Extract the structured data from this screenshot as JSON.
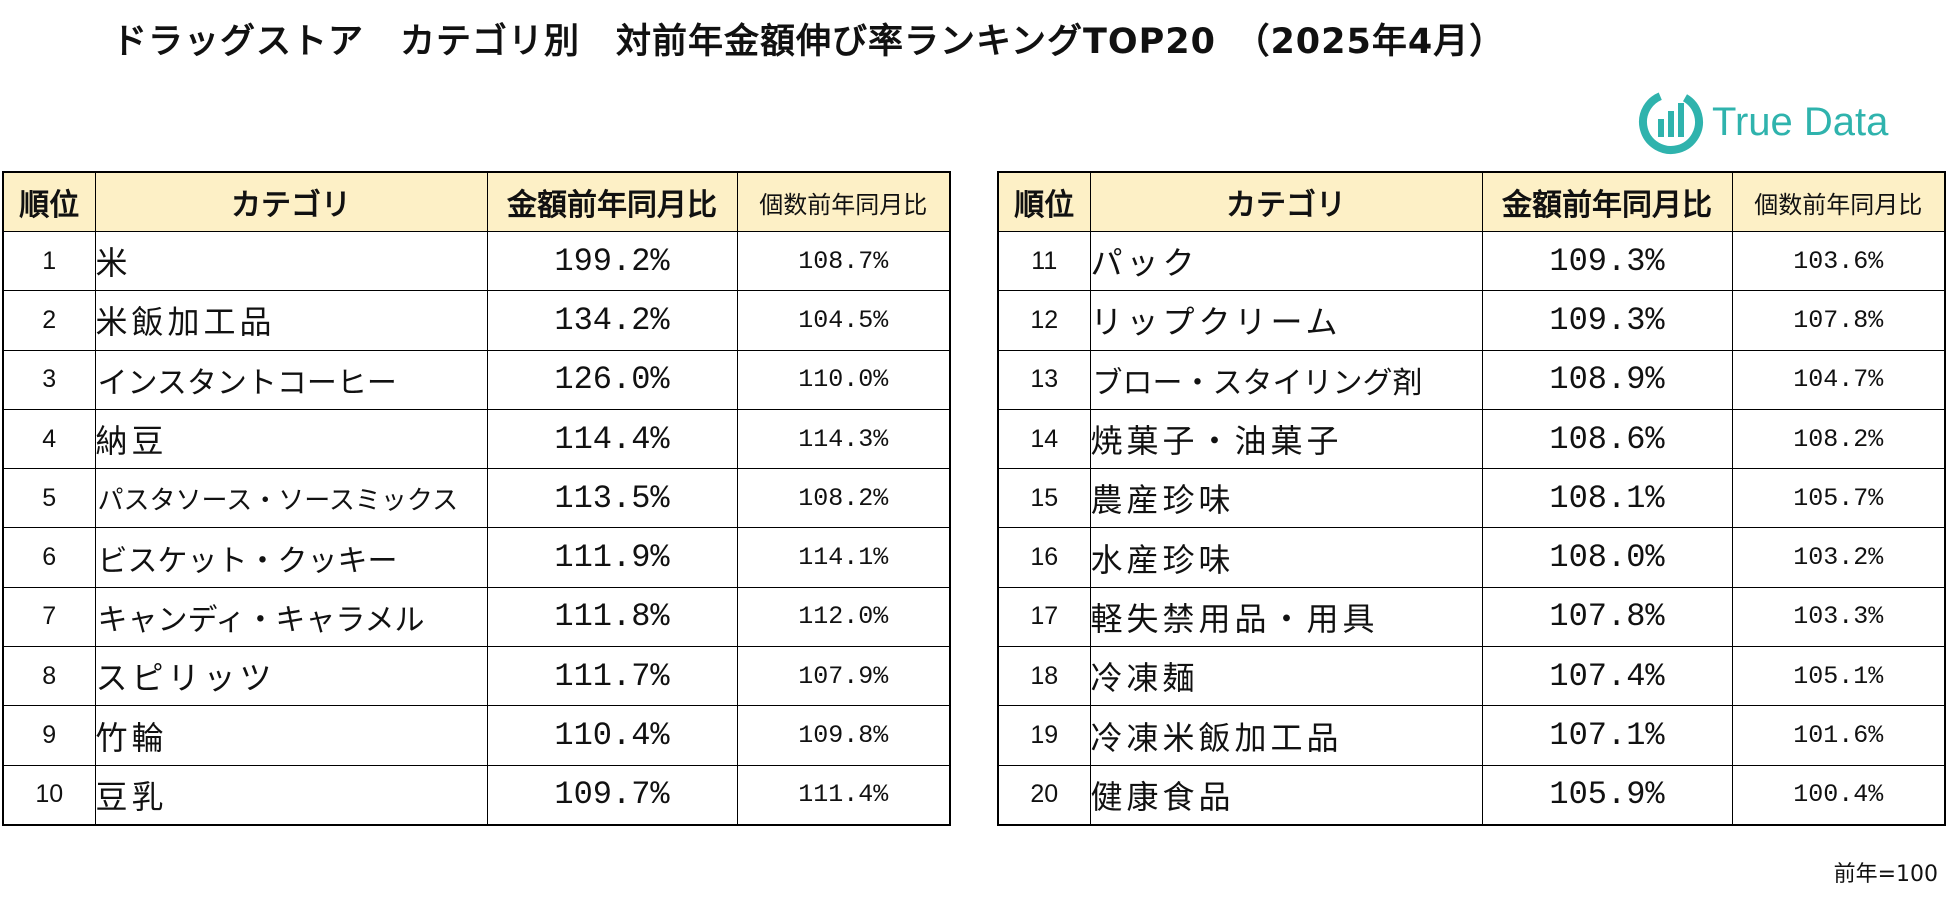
{
  "title": "ドラッグストア　カテゴリ別　対前年金額伸び率ランキングTOP20　（2025年4月）",
  "logo": {
    "text": "True Data",
    "icon": "bar-chart-circle-icon",
    "color": "#2fb3ad"
  },
  "headers": {
    "rank": "順位",
    "category": "カテゴリ",
    "amount": "金額前年同月比",
    "quantity": "個数前年同月比"
  },
  "header_bg": "#fdf0c6",
  "left_rows": [
    {
      "rank": "1",
      "category": "米",
      "amount": "199.2%",
      "quantity": "108.7%"
    },
    {
      "rank": "2",
      "category": "米飯加工品",
      "amount": "134.2%",
      "quantity": "104.5%"
    },
    {
      "rank": "3",
      "category": "インスタントコーヒー",
      "amount": "126.0%",
      "quantity": "110.0%"
    },
    {
      "rank": "4",
      "category": "納豆",
      "amount": "114.4%",
      "quantity": "114.3%"
    },
    {
      "rank": "5",
      "category": "パスタソース・ソースミックス",
      "amount": "113.5%",
      "quantity": "108.2%"
    },
    {
      "rank": "6",
      "category": "ビスケット・クッキー",
      "amount": "111.9%",
      "quantity": "114.1%"
    },
    {
      "rank": "7",
      "category": "キャンディ・キャラメル",
      "amount": "111.8%",
      "quantity": "112.0%"
    },
    {
      "rank": "8",
      "category": "スピリッツ",
      "amount": "111.7%",
      "quantity": "107.9%"
    },
    {
      "rank": "9",
      "category": "竹輪",
      "amount": "110.4%",
      "quantity": "109.8%"
    },
    {
      "rank": "10",
      "category": "豆乳",
      "amount": "109.7%",
      "quantity": "111.4%"
    }
  ],
  "right_rows": [
    {
      "rank": "11",
      "category": "パック",
      "amount": "109.3%",
      "quantity": "103.6%"
    },
    {
      "rank": "12",
      "category": "リップクリーム",
      "amount": "109.3%",
      "quantity": "107.8%"
    },
    {
      "rank": "13",
      "category": "ブロー・スタイリング剤",
      "amount": "108.9%",
      "quantity": "104.7%"
    },
    {
      "rank": "14",
      "category": "焼菓子・油菓子",
      "amount": "108.6%",
      "quantity": "108.2%"
    },
    {
      "rank": "15",
      "category": "農産珍味",
      "amount": "108.1%",
      "quantity": "105.7%"
    },
    {
      "rank": "16",
      "category": "水産珍味",
      "amount": "108.0%",
      "quantity": "103.2%"
    },
    {
      "rank": "17",
      "category": "軽失禁用品・用具",
      "amount": "107.8%",
      "quantity": "103.3%"
    },
    {
      "rank": "18",
      "category": "冷凍麺",
      "amount": "107.4%",
      "quantity": "105.1%"
    },
    {
      "rank": "19",
      "category": "冷凍米飯加工品",
      "amount": "107.1%",
      "quantity": "101.6%"
    },
    {
      "rank": "20",
      "category": "健康食品",
      "amount": "105.9%",
      "quantity": "100.4%"
    }
  ],
  "note": "前年=100"
}
